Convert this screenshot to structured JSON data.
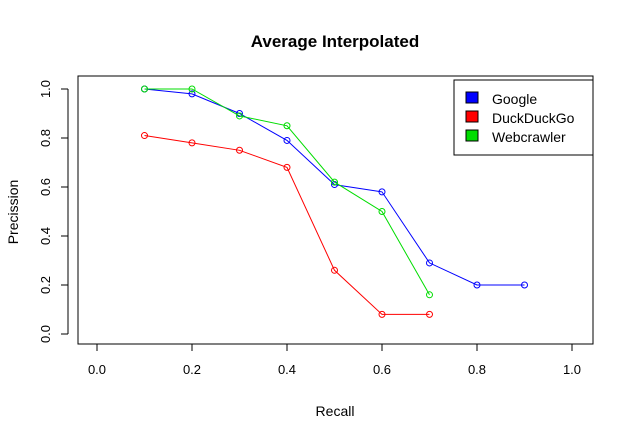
{
  "chart_data": {
    "type": "line",
    "title": "Average Interpolated",
    "xlabel": "Recall",
    "ylabel": "Precission",
    "xlim": [
      0.0,
      1.0
    ],
    "ylim": [
      0.0,
      1.0
    ],
    "xticks": [
      "0.0",
      "0.2",
      "0.4",
      "0.6",
      "0.8",
      "1.0"
    ],
    "yticks": [
      "0.0",
      "0.2",
      "0.4",
      "0.6",
      "0.8",
      "1.0"
    ],
    "grid": false,
    "legend_position": "top-right",
    "series": [
      {
        "name": "Google",
        "color": "#0000ff",
        "x": [
          0.1,
          0.2,
          0.3,
          0.4,
          0.5,
          0.6,
          0.7,
          0.8,
          0.9
        ],
        "y": [
          1.0,
          0.98,
          0.9,
          0.79,
          0.61,
          0.58,
          0.29,
          0.2,
          0.2
        ]
      },
      {
        "name": "DuckDuckGo",
        "color": "#ff0000",
        "x": [
          0.1,
          0.2,
          0.3,
          0.4,
          0.5,
          0.6,
          0.7
        ],
        "y": [
          0.81,
          0.78,
          0.75,
          0.68,
          0.26,
          0.08,
          0.08
        ]
      },
      {
        "name": "Webcrawler",
        "color": "#00dd00",
        "x": [
          0.1,
          0.2,
          0.3,
          0.4,
          0.5,
          0.6,
          0.7
        ],
        "y": [
          1.0,
          1.0,
          0.89,
          0.85,
          0.62,
          0.5,
          0.16
        ]
      }
    ]
  }
}
